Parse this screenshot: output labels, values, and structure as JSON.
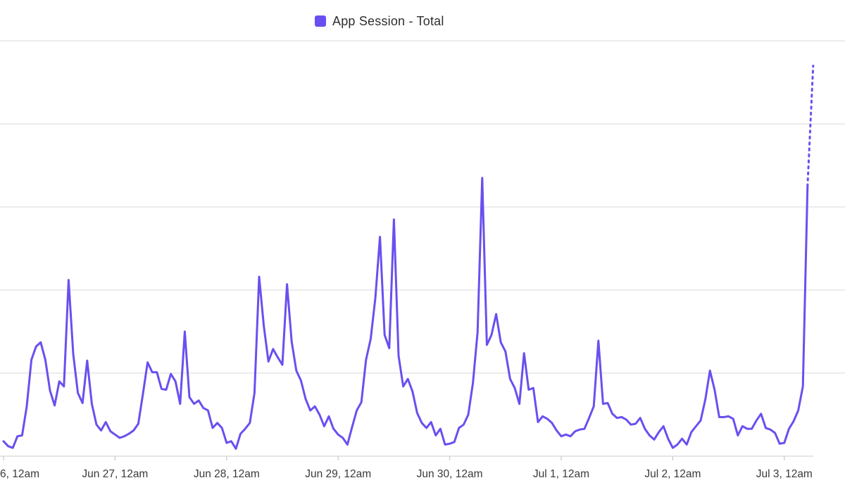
{
  "legend": {
    "label": "App Session - Total",
    "color": "#6a4ff0"
  },
  "chart_data": {
    "type": "line",
    "title": "",
    "xlabel": "",
    "ylabel": "",
    "grid": true,
    "legend_position": "top-center",
    "ylim": [
      0,
      500
    ],
    "x_ticks": [
      {
        "label": "6, 12am",
        "index": 0
      },
      {
        "label": "Jun 27, 12am",
        "index": 24
      },
      {
        "label": "Jun 28, 12am",
        "index": 48
      },
      {
        "label": "Jun 29, 12am",
        "index": 72
      },
      {
        "label": "Jun 30, 12am",
        "index": 96
      },
      {
        "label": "Jul 1, 12am",
        "index": 120
      },
      {
        "label": "Jul 2, 12am",
        "index": 144
      },
      {
        "label": "Jul 3, 12am",
        "index": 168
      }
    ],
    "series": [
      {
        "name": "App Session - Total",
        "color": "#6a4ff0",
        "values": [
          18,
          12,
          10,
          24,
          25,
          60,
          116,
          132,
          137,
          116,
          79,
          61,
          90,
          84,
          212,
          123,
          76,
          64,
          115,
          63,
          38,
          31,
          41,
          30,
          26,
          22,
          24,
          27,
          31,
          39,
          75,
          113,
          101,
          101,
          81,
          80,
          99,
          90,
          63,
          150,
          71,
          63,
          67,
          58,
          55,
          34,
          40,
          34,
          16,
          18,
          9,
          27,
          33,
          40,
          76,
          216,
          157,
          114,
          129,
          119,
          110,
          207,
          138,
          103,
          91,
          69,
          55,
          60,
          50,
          36,
          48,
          33,
          26,
          22,
          14,
          35,
          55,
          65,
          116,
          141,
          190,
          264,
          146,
          130,
          285,
          121,
          84,
          93,
          78,
          52,
          40,
          34,
          41,
          25,
          33,
          14,
          15,
          17,
          34,
          38,
          50,
          88,
          149,
          335,
          134,
          146,
          171,
          137,
          126,
          93,
          82,
          63,
          124,
          80,
          82,
          41,
          48,
          45,
          40,
          31,
          24,
          26,
          24,
          30,
          32,
          33,
          46,
          60,
          139,
          63,
          64,
          51,
          46,
          47,
          44,
          38,
          39,
          46,
          33,
          25,
          20,
          29,
          36,
          21,
          10,
          14,
          21,
          14,
          29,
          36,
          43,
          68,
          103,
          80,
          47,
          47,
          48,
          45,
          25,
          36,
          33,
          33,
          43,
          51,
          34,
          32,
          28,
          15,
          16,
          33,
          42,
          55,
          84,
          325
        ],
        "forecast_values": [
          325,
          470
        ]
      }
    ]
  }
}
